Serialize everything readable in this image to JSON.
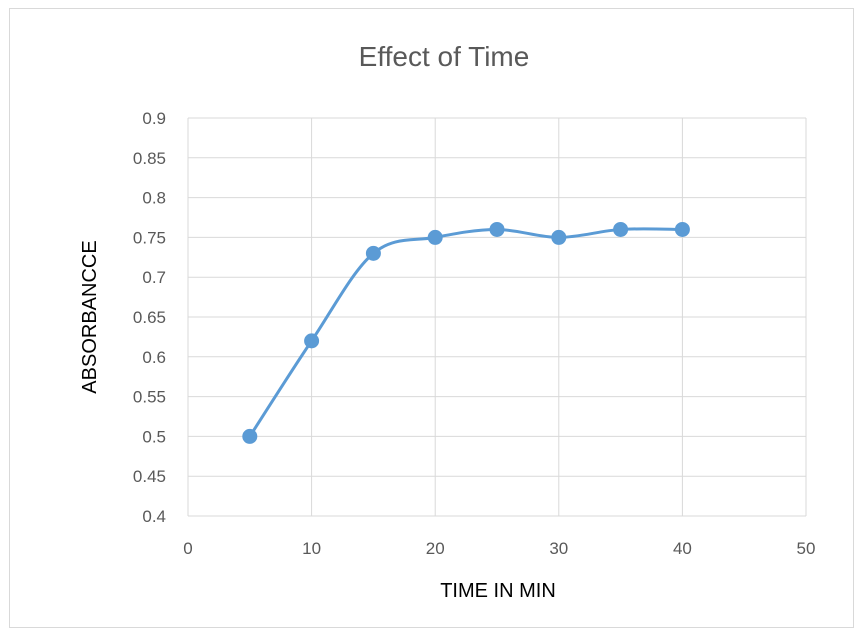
{
  "chart_data": {
    "type": "line",
    "title": "Effect of Time",
    "xlabel": "TIME IN MIN",
    "ylabel": "ABSORBANCCE",
    "xlim": [
      0,
      50
    ],
    "ylim": [
      0.4,
      0.9
    ],
    "xticks": [
      0,
      10,
      20,
      30,
      40,
      50
    ],
    "yticks": [
      0.4,
      0.45,
      0.5,
      0.55,
      0.6,
      0.65,
      0.7,
      0.75,
      0.8,
      0.85,
      0.9
    ],
    "xtick_labels": [
      "0",
      "10",
      "20",
      "30",
      "40",
      "50"
    ],
    "ytick_labels": [
      "0.4",
      "0.45",
      "0.5",
      "0.55",
      "0.6",
      "0.65",
      "0.7",
      "0.75",
      "0.8",
      "0.85",
      "0.9"
    ],
    "grid": true,
    "smooth": true,
    "series": [
      {
        "x": [
          5,
          10,
          15,
          20,
          25,
          30,
          35,
          40
        ],
        "y": [
          0.5,
          0.62,
          0.73,
          0.75,
          0.76,
          0.75,
          0.76,
          0.76
        ],
        "color": "#5b9bd5"
      }
    ],
    "colors": {
      "gridline": "#d9d9d9",
      "text": "#595959"
    }
  }
}
